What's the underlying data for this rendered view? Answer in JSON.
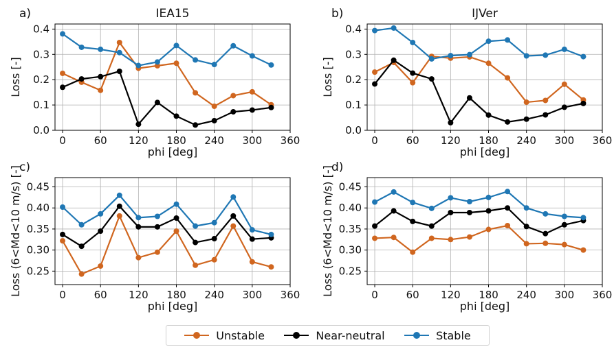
{
  "colors": {
    "unstable": "#d0661f",
    "near_neutral": "#000000",
    "stable": "#1f77b4"
  },
  "legend": {
    "items": [
      {
        "label": "Unstable",
        "color": "#d0661f"
      },
      {
        "label": "Near-neutral",
        "color": "#000000"
      },
      {
        "label": "Stable",
        "color": "#1f77b4"
      }
    ],
    "placement": "bottom-center"
  },
  "chart_data": [
    {
      "panel_label": "a)",
      "title": "IEA15",
      "type": "line",
      "xlabel": "phi [deg]",
      "ylabel": "Loss [-]",
      "xlim": [
        -12,
        360
      ],
      "ylim": [
        0,
        0.42
      ],
      "xticks": [
        0,
        60,
        120,
        180,
        240,
        300,
        360
      ],
      "xtick_labels": [
        "0",
        "60",
        "120",
        "180",
        "240",
        "300",
        "360"
      ],
      "yticks": [
        0,
        0.1,
        0.2,
        0.3,
        0.4
      ],
      "ytick_labels": [
        "0.0",
        "0.1",
        "0.2",
        "0.3",
        "0.4"
      ],
      "grid": true,
      "x": [
        0,
        30,
        60,
        90,
        120,
        150,
        180,
        210,
        240,
        270,
        300,
        330
      ],
      "series": [
        {
          "name": "Unstable",
          "values": [
            0.225,
            0.19,
            0.158,
            0.347,
            0.245,
            0.255,
            0.265,
            0.148,
            0.095,
            0.137,
            0.152,
            0.101
          ]
        },
        {
          "name": "Near-neutral",
          "values": [
            0.17,
            0.203,
            0.212,
            0.233,
            0.024,
            0.11,
            0.056,
            0.021,
            0.038,
            0.073,
            0.08,
            0.09
          ]
        },
        {
          "name": "Stable",
          "values": [
            0.381,
            0.328,
            0.32,
            0.307,
            0.256,
            0.27,
            0.335,
            0.278,
            0.26,
            0.334,
            0.294,
            0.258
          ]
        }
      ]
    },
    {
      "panel_label": "b)",
      "title": "IJVer",
      "type": "line",
      "xlabel": "phi [deg]",
      "ylabel": "Loss [-]",
      "xlim": [
        -12,
        360
      ],
      "ylim": [
        0,
        0.42
      ],
      "xticks": [
        0,
        60,
        120,
        180,
        240,
        300,
        360
      ],
      "xtick_labels": [
        "0",
        "60",
        "120",
        "180",
        "240",
        "300",
        "360"
      ],
      "yticks": [
        0,
        0.1,
        0.2,
        0.3,
        0.4
      ],
      "ytick_labels": [
        "0.0",
        "0.1",
        "0.2",
        "0.3",
        "0.4"
      ],
      "grid": true,
      "x": [
        0,
        30,
        60,
        90,
        120,
        150,
        180,
        210,
        240,
        270,
        300,
        330
      ],
      "series": [
        {
          "name": "Unstable",
          "values": [
            0.23,
            0.268,
            0.188,
            0.292,
            0.285,
            0.29,
            0.265,
            0.207,
            0.111,
            0.118,
            0.182,
            0.12
          ]
        },
        {
          "name": "Near-neutral",
          "values": [
            0.183,
            0.277,
            0.226,
            0.203,
            0.03,
            0.128,
            0.06,
            0.033,
            0.044,
            0.061,
            0.091,
            0.106
          ]
        },
        {
          "name": "Stable",
          "values": [
            0.394,
            0.404,
            0.347,
            0.282,
            0.295,
            0.299,
            0.352,
            0.357,
            0.294,
            0.297,
            0.32,
            0.291
          ]
        }
      ]
    },
    {
      "panel_label": "c)",
      "title": "",
      "type": "line",
      "xlabel": "phi [deg]",
      "ylabel": "Loss (6<Md<10 m/s) [-]",
      "xlim": [
        -12,
        360
      ],
      "ylim": [
        0.218,
        0.472
      ],
      "xticks": [
        0,
        60,
        120,
        180,
        240,
        300,
        360
      ],
      "xtick_labels": [
        "0",
        "60",
        "120",
        "180",
        "240",
        "300",
        "360"
      ],
      "yticks": [
        0.25,
        0.3,
        0.35,
        0.4,
        0.45
      ],
      "ytick_labels": [
        "0.25",
        "0.30",
        "0.35",
        "0.40",
        "0.45"
      ],
      "grid": true,
      "x": [
        0,
        30,
        60,
        90,
        120,
        150,
        180,
        210,
        240,
        270,
        300,
        330
      ],
      "series": [
        {
          "name": "Unstable",
          "values": [
            0.322,
            0.243,
            0.262,
            0.381,
            0.282,
            0.295,
            0.345,
            0.264,
            0.277,
            0.357,
            0.272,
            0.26
          ]
        },
        {
          "name": "Near-neutral",
          "values": [
            0.337,
            0.309,
            0.345,
            0.404,
            0.355,
            0.355,
            0.376,
            0.318,
            0.327,
            0.381,
            0.326,
            0.329
          ]
        },
        {
          "name": "Stable",
          "values": [
            0.402,
            0.36,
            0.386,
            0.43,
            0.377,
            0.38,
            0.409,
            0.357,
            0.365,
            0.426,
            0.348,
            0.337
          ]
        }
      ]
    },
    {
      "panel_label": "d)",
      "title": "",
      "type": "line",
      "xlabel": "phi [deg]",
      "ylabel": "Loss (6<Md<10 m/s) [-]",
      "xlim": [
        -12,
        360
      ],
      "ylim": [
        0.218,
        0.472
      ],
      "xticks": [
        0,
        60,
        120,
        180,
        240,
        300,
        360
      ],
      "xtick_labels": [
        "0",
        "60",
        "120",
        "180",
        "240",
        "300",
        "360"
      ],
      "yticks": [
        0.25,
        0.3,
        0.35,
        0.4,
        0.45
      ],
      "ytick_labels": [
        "0.25",
        "0.30",
        "0.35",
        "0.40",
        "0.45"
      ],
      "grid": true,
      "x": [
        0,
        30,
        60,
        90,
        120,
        150,
        180,
        210,
        240,
        270,
        300,
        330
      ],
      "series": [
        {
          "name": "Unstable",
          "values": [
            0.328,
            0.33,
            0.295,
            0.328,
            0.325,
            0.331,
            0.349,
            0.358,
            0.315,
            0.316,
            0.313,
            0.3
          ]
        },
        {
          "name": "Near-neutral",
          "values": [
            0.357,
            0.393,
            0.368,
            0.357,
            0.389,
            0.389,
            0.393,
            0.4,
            0.356,
            0.339,
            0.36,
            0.37
          ]
        },
        {
          "name": "Stable",
          "values": [
            0.414,
            0.438,
            0.413,
            0.399,
            0.424,
            0.415,
            0.425,
            0.439,
            0.4,
            0.386,
            0.38,
            0.377
          ]
        }
      ]
    }
  ]
}
